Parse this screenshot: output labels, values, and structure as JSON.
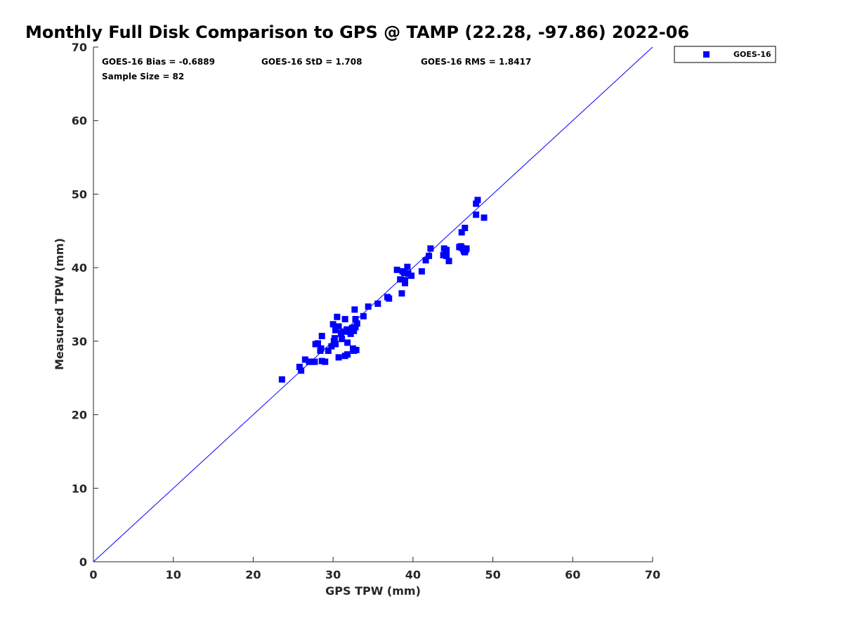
{
  "chart_data": {
    "type": "scatter",
    "title": "Monthly Full Disk Comparison to GPS @ TAMP (22.28, -97.86) 2022-06",
    "xlabel": "GPS TPW (mm)",
    "ylabel": "Measured TPW (mm)",
    "xlim": [
      0,
      70
    ],
    "ylim": [
      0,
      70
    ],
    "xticks": [
      0,
      10,
      20,
      30,
      40,
      50,
      60,
      70
    ],
    "yticks": [
      0,
      10,
      20,
      30,
      40,
      50,
      60,
      70
    ],
    "grid": false,
    "legend_position": "top-right-outside",
    "reference_line": {
      "x": [
        0,
        70
      ],
      "y": [
        0,
        70
      ],
      "color": "#0000ff"
    },
    "stats": {
      "bias": "GOES-16 Bias = -0.6889",
      "std": "GOES-16 StD = 1.708",
      "rms": "GOES-16 RMS = 1.8417",
      "sample": "Sample Size = 82"
    },
    "series": [
      {
        "name": "GOES-16",
        "color": "#0000ff",
        "marker": "square",
        "points": [
          [
            23.6,
            24.8
          ],
          [
            25.8,
            26.5
          ],
          [
            26.0,
            26.0
          ],
          [
            26.5,
            27.5
          ],
          [
            27.0,
            27.2
          ],
          [
            27.3,
            27.2
          ],
          [
            27.7,
            27.2
          ],
          [
            27.8,
            29.6
          ],
          [
            28.1,
            29.7
          ],
          [
            28.4,
            28.7
          ],
          [
            28.5,
            29.0
          ],
          [
            28.6,
            27.3
          ],
          [
            28.6,
            30.7
          ],
          [
            29.0,
            27.2
          ],
          [
            29.4,
            28.7
          ],
          [
            29.8,
            29.3
          ],
          [
            30.0,
            32.3
          ],
          [
            30.1,
            30.0
          ],
          [
            30.2,
            30.4
          ],
          [
            30.3,
            29.6
          ],
          [
            30.3,
            31.5
          ],
          [
            30.5,
            33.3
          ],
          [
            30.7,
            27.8
          ],
          [
            30.7,
            32.0
          ],
          [
            31.0,
            31.1
          ],
          [
            31.1,
            30.3
          ],
          [
            31.3,
            31.3
          ],
          [
            31.5,
            33.0
          ],
          [
            31.5,
            28.0
          ],
          [
            31.7,
            31.6
          ],
          [
            31.8,
            28.2
          ],
          [
            31.8,
            29.8
          ],
          [
            32.0,
            31.3
          ],
          [
            32.2,
            31.0
          ],
          [
            32.4,
            31.8
          ],
          [
            32.5,
            29.0
          ],
          [
            32.6,
            31.4
          ],
          [
            32.6,
            28.7
          ],
          [
            32.7,
            34.3
          ],
          [
            32.8,
            33.0
          ],
          [
            32.8,
            31.9
          ],
          [
            32.9,
            28.8
          ],
          [
            33.0,
            32.4
          ],
          [
            33.8,
            33.4
          ],
          [
            34.4,
            34.7
          ],
          [
            35.6,
            35.1
          ],
          [
            36.8,
            36.0
          ],
          [
            37.0,
            35.8
          ],
          [
            38.0,
            39.7
          ],
          [
            38.4,
            38.4
          ],
          [
            38.6,
            36.5
          ],
          [
            38.7,
            39.5
          ],
          [
            38.9,
            39.3
          ],
          [
            39.0,
            37.9
          ],
          [
            39.0,
            38.3
          ],
          [
            39.3,
            40.1
          ],
          [
            39.4,
            39.2
          ],
          [
            39.8,
            38.9
          ],
          [
            41.1,
            39.5
          ],
          [
            41.6,
            41.0
          ],
          [
            42.0,
            41.6
          ],
          [
            42.2,
            42.6
          ],
          [
            43.8,
            41.7
          ],
          [
            43.9,
            42.6
          ],
          [
            44.1,
            42.0
          ],
          [
            44.2,
            41.6
          ],
          [
            44.2,
            42.4
          ],
          [
            44.5,
            40.9
          ],
          [
            45.8,
            42.8
          ],
          [
            46.1,
            44.8
          ],
          [
            46.1,
            42.7
          ],
          [
            46.3,
            42.5
          ],
          [
            46.4,
            42.2
          ],
          [
            46.5,
            42.1
          ],
          [
            46.5,
            45.4
          ],
          [
            46.6,
            42.4
          ],
          [
            46.7,
            42.6
          ],
          [
            47.9,
            47.2
          ],
          [
            47.9,
            48.7
          ],
          [
            48.1,
            49.2
          ],
          [
            48.9,
            46.8
          ],
          [
            46.0,
            42.9
          ]
        ]
      }
    ]
  }
}
